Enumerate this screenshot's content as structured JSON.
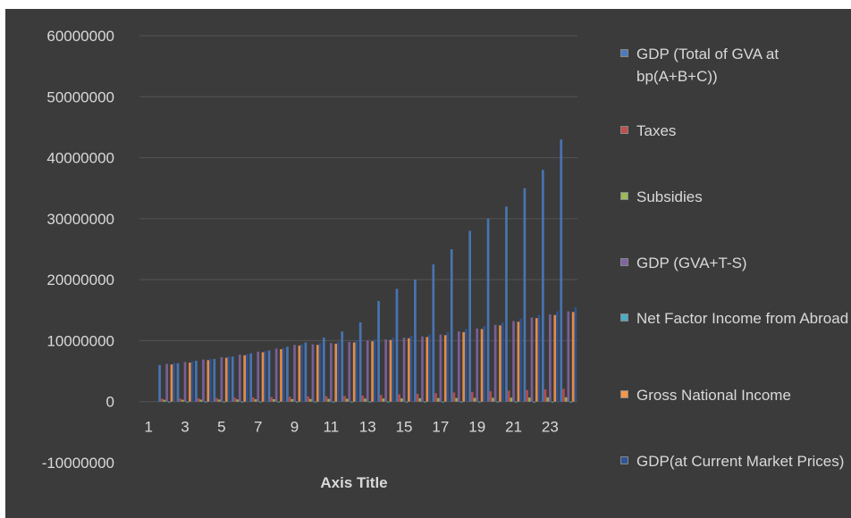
{
  "chart_data": {
    "type": "bar",
    "title": "",
    "xlabel": "Axis Title",
    "ylabel": "",
    "ylim": [
      -10000000,
      60000000
    ],
    "ytick_step": 10000000,
    "yticks": [
      "60000000",
      "50000000",
      "40000000",
      "30000000",
      "20000000",
      "10000000",
      "0",
      "-10000000"
    ],
    "categories": [
      1,
      2,
      3,
      4,
      5,
      6,
      7,
      8,
      9,
      10,
      11,
      12,
      13,
      14,
      15,
      16,
      17,
      18,
      19,
      20,
      21,
      22,
      23,
      24
    ],
    "xtick_labels": [
      "1",
      "3",
      "5",
      "7",
      "9",
      "11",
      "13",
      "15",
      "17",
      "19",
      "21",
      "23"
    ],
    "grid": true,
    "legend_position": "right",
    "series": [
      {
        "name": "GDP (Total of GVA at bp(A+B+C))",
        "color": "#4a7bbf",
        "values": [
          null,
          6000000,
          6300000,
          6700000,
          7000000,
          7400000,
          7900000,
          8400000,
          9000000,
          9700000,
          10500000,
          11500000,
          13000000,
          16500000,
          18500000,
          20000000,
          22500000,
          25000000,
          28000000,
          30000000,
          32000000,
          35000000,
          38000000,
          43000000
        ]
      },
      {
        "name": "Taxes",
        "color": "#c0504d",
        "values": [
          null,
          500000,
          500000,
          550000,
          600000,
          650000,
          700000,
          750000,
          800000,
          850000,
          900000,
          950000,
          1000000,
          1100000,
          1200000,
          1300000,
          1400000,
          1500000,
          1600000,
          1700000,
          1800000,
          1900000,
          2000000,
          2100000
        ]
      },
      {
        "name": "Subsidies",
        "color": "#9bbb59",
        "values": [
          null,
          300000,
          300000,
          320000,
          340000,
          360000,
          380000,
          400000,
          420000,
          440000,
          460000,
          480000,
          500000,
          520000,
          540000,
          560000,
          580000,
          600000,
          620000,
          640000,
          660000,
          680000,
          700000,
          720000
        ]
      },
      {
        "name": "GDP  (GVA+T-S)",
        "color": "#8064a2",
        "values": [
          null,
          6200000,
          6500000,
          6900000,
          7300000,
          7700000,
          8200000,
          8700000,
          9300000,
          9400000,
          9600000,
          9800000,
          10000000,
          10200000,
          10500000,
          10700000,
          11000000,
          11500000,
          12000000,
          12600000,
          13200000,
          13800000,
          14300000,
          14800000
        ]
      },
      {
        "name": "Net Factor Income from Abroad",
        "color": "#4bacc6",
        "values": [
          null,
          -50000,
          -50000,
          -60000,
          -60000,
          -70000,
          -70000,
          -80000,
          -80000,
          -90000,
          -90000,
          -100000,
          -100000,
          -110000,
          -110000,
          -120000,
          -120000,
          -130000,
          -130000,
          -140000,
          -140000,
          -150000,
          -150000,
          -160000
        ]
      },
      {
        "name": "Gross National Income",
        "color": "#f79646",
        "values": [
          null,
          6100000,
          6400000,
          6800000,
          7200000,
          7600000,
          8100000,
          8600000,
          9200000,
          9300000,
          9500000,
          9700000,
          9900000,
          10100000,
          10400000,
          10600000,
          10900000,
          11400000,
          11900000,
          12500000,
          13100000,
          13700000,
          14200000,
          14700000
        ]
      },
      {
        "name": "GDP(at Current Market Prices)",
        "color": "#2f5597",
        "values": [
          null,
          6300000,
          6600000,
          7000000,
          7400000,
          7800000,
          8300000,
          8800000,
          9400000,
          9600000,
          9800000,
          10000000,
          10200000,
          10500000,
          10800000,
          11000000,
          11400000,
          11900000,
          12400000,
          13000000,
          13600000,
          14200000,
          14800000,
          15500000
        ]
      }
    ]
  },
  "colors": {
    "panel_background": "#3b3b3b",
    "text": "#d9d9d9",
    "gridline": "#555555"
  }
}
